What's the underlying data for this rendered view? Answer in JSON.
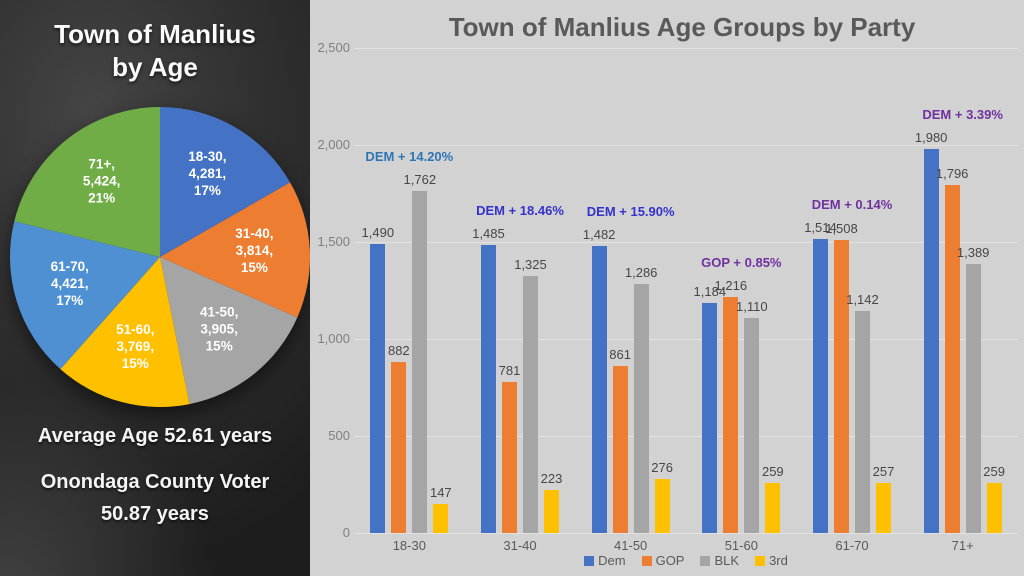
{
  "left_panel": {
    "title_line1": "Town of Manlius",
    "title_line2": "by Age",
    "avg_age_text": "Average Age 52.61 years",
    "county_line1": "Onondaga County Voter",
    "county_line2": "50.87 years"
  },
  "chart_data": [
    {
      "type": "pie",
      "title": "Town of Manlius by Age",
      "slices": [
        {
          "label": "18-30",
          "value": 4281,
          "pct": "17%",
          "color": "#4472C4"
        },
        {
          "label": "31-40",
          "value": 3814,
          "pct": "15%",
          "color": "#ED7D31"
        },
        {
          "label": "41-50",
          "value": 3905,
          "pct": "15%",
          "color": "#A5A5A5"
        },
        {
          "label": "51-60",
          "value": 3769,
          "pct": "15%",
          "color": "#FFC000"
        },
        {
          "label": "61-70",
          "value": 4421,
          "pct": "17%",
          "color": "#4E90D2"
        },
        {
          "label": "71+",
          "value": 5424,
          "pct": "21%",
          "color": "#70AD47"
        }
      ],
      "notes": [
        "Average Age 52.61 years",
        "Onondaga County Voter 50.87 years"
      ]
    },
    {
      "type": "bar",
      "title": "Town of Manlius Age Groups by Party",
      "categories": [
        "18-30",
        "31-40",
        "41-50",
        "51-60",
        "61-70",
        "71+"
      ],
      "series": [
        {
          "name": "Dem",
          "color": "#4472C4",
          "values": [
            1490,
            1485,
            1482,
            1184,
            1514,
            1980
          ]
        },
        {
          "name": "GOP",
          "color": "#ED7D31",
          "values": [
            882,
            781,
            861,
            1216,
            1508,
            1796
          ]
        },
        {
          "name": "BLK",
          "color": "#A5A5A5",
          "values": [
            1762,
            1325,
            1286,
            1110,
            1142,
            1389
          ]
        },
        {
          "name": "3rd",
          "color": "#FFC000",
          "values": [
            147,
            223,
            276,
            259,
            257,
            259
          ]
        }
      ],
      "annotations": [
        {
          "group": "18-30",
          "text": "DEM + 14.20%",
          "color": "#2E75B6"
        },
        {
          "group": "31-40",
          "text": "DEM + 18.46%",
          "color": "#3333CC"
        },
        {
          "group": "41-50",
          "text": "DEM + 15.90%",
          "color": "#3333CC"
        },
        {
          "group": "51-60",
          "text": "GOP + 0.85%",
          "color": "#7030A0"
        },
        {
          "group": "61-70",
          "text": "DEM + 0.14%",
          "color": "#7030A0"
        },
        {
          "group": "71+",
          "text": "DEM + 3.39%",
          "color": "#7030A0"
        }
      ],
      "y_ticks": [
        "0",
        "500",
        "1,000",
        "1,500",
        "2,000",
        "2,500"
      ],
      "ylim": [
        0,
        2500
      ],
      "grid": true,
      "legend_position": "bottom"
    }
  ]
}
